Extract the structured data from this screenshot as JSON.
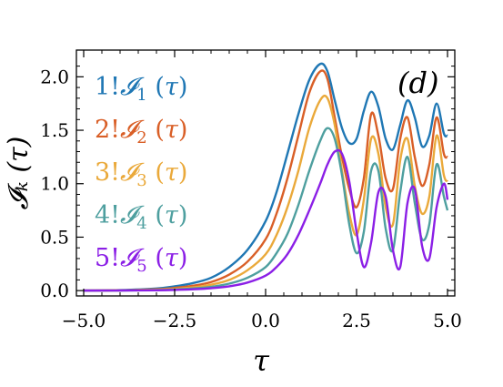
{
  "chart_data": {
    "type": "line",
    "xlabel": "τ",
    "ylabel": "𝓘ₖ (τ)",
    "xlim": [
      -5.2,
      5.2
    ],
    "ylim": [
      -0.05,
      2.25
    ],
    "xticks": [
      -5.0,
      -2.5,
      0.0,
      2.5,
      5.0
    ],
    "xtick_labels": [
      "−5.0",
      "−2.5",
      "0.0",
      "2.5",
      "5.0"
    ],
    "yticks": [
      0.0,
      0.5,
      1.0,
      1.5,
      2.0
    ],
    "ytick_labels": [
      "0.0",
      "0.5",
      "1.0",
      "1.5",
      "2.0"
    ],
    "panel_label": "(d)",
    "legend_position": "upper-left",
    "series": [
      {
        "name": "1!𝓘₁ (τ)",
        "prefix": "1!",
        "sub": "1",
        "color": "#1f77b4",
        "x": [
          -5.0,
          -4.0,
          -3.0,
          -2.5,
          -2.0,
          -1.5,
          -1.0,
          -0.5,
          0.0,
          0.3,
          0.6,
          0.9,
          1.2,
          1.5,
          1.7,
          1.9,
          2.1,
          2.3,
          2.5,
          2.7,
          2.9,
          3.1,
          3.3,
          3.5,
          3.7,
          3.9,
          4.1,
          4.3,
          4.5,
          4.7,
          4.9,
          5.0
        ],
        "y": [
          0.0,
          0.005,
          0.02,
          0.04,
          0.07,
          0.12,
          0.22,
          0.38,
          0.65,
          0.92,
          1.28,
          1.65,
          1.97,
          2.12,
          2.05,
          1.78,
          1.52,
          1.38,
          1.42,
          1.68,
          1.86,
          1.72,
          1.42,
          1.32,
          1.55,
          1.78,
          1.62,
          1.35,
          1.45,
          1.75,
          1.47,
          1.45
        ]
      },
      {
        "name": "2!𝓘₂ (τ)",
        "prefix": "2!",
        "sub": "2",
        "color": "#d95f27",
        "x": [
          -5.0,
          -4.0,
          -3.0,
          -2.5,
          -2.0,
          -1.5,
          -1.0,
          -0.5,
          0.0,
          0.3,
          0.6,
          0.9,
          1.2,
          1.5,
          1.7,
          1.9,
          2.1,
          2.3,
          2.5,
          2.7,
          2.9,
          3.1,
          3.3,
          3.5,
          3.7,
          3.9,
          4.1,
          4.3,
          4.5,
          4.7,
          4.9,
          5.0
        ],
        "y": [
          0.0,
          0.003,
          0.012,
          0.025,
          0.045,
          0.08,
          0.15,
          0.27,
          0.48,
          0.72,
          1.05,
          1.45,
          1.85,
          2.05,
          1.98,
          1.62,
          1.25,
          0.95,
          0.78,
          1.05,
          1.65,
          1.45,
          1.05,
          0.95,
          1.42,
          1.62,
          1.25,
          0.98,
          1.18,
          1.62,
          1.28,
          1.25
        ]
      },
      {
        "name": "3!𝓘₃ (τ)",
        "prefix": "3!",
        "sub": "3",
        "color": "#eaa93a",
        "x": [
          -5.0,
          -4.0,
          -3.0,
          -2.5,
          -2.0,
          -1.5,
          -1.0,
          -0.5,
          0.0,
          0.3,
          0.6,
          0.9,
          1.2,
          1.5,
          1.7,
          1.9,
          2.1,
          2.3,
          2.5,
          2.7,
          2.9,
          3.1,
          3.3,
          3.5,
          3.7,
          3.9,
          4.1,
          4.3,
          4.5,
          4.7,
          4.9,
          5.0
        ],
        "y": [
          0.0,
          0.002,
          0.008,
          0.016,
          0.03,
          0.055,
          0.1,
          0.19,
          0.34,
          0.52,
          0.78,
          1.12,
          1.52,
          1.78,
          1.8,
          1.55,
          1.12,
          0.72,
          0.52,
          0.85,
          1.42,
          1.28,
          0.78,
          0.62,
          1.22,
          1.42,
          0.98,
          0.72,
          0.88,
          1.45,
          1.08,
          1.02
        ]
      },
      {
        "name": "4!𝓘₄ (τ)",
        "prefix": "4!",
        "sub": "4",
        "color": "#4e9f9f",
        "x": [
          -5.0,
          -4.0,
          -3.0,
          -2.5,
          -2.0,
          -1.5,
          -1.0,
          -0.5,
          0.0,
          0.3,
          0.6,
          0.9,
          1.2,
          1.5,
          1.7,
          1.9,
          2.1,
          2.3,
          2.5,
          2.7,
          2.9,
          3.1,
          3.3,
          3.5,
          3.7,
          3.9,
          4.1,
          4.3,
          4.5,
          4.7,
          4.9,
          5.0
        ],
        "y": [
          0.0,
          0.001,
          0.005,
          0.01,
          0.02,
          0.035,
          0.065,
          0.12,
          0.22,
          0.35,
          0.53,
          0.8,
          1.12,
          1.4,
          1.52,
          1.42,
          1.08,
          0.62,
          0.35,
          0.55,
          1.12,
          1.12,
          0.58,
          0.38,
          0.92,
          1.25,
          0.82,
          0.48,
          0.62,
          1.18,
          0.88,
          0.75
        ]
      },
      {
        "name": "5!𝓘₅ (τ)",
        "prefix": "5!",
        "sub": "5",
        "color": "#8b1fe6",
        "x": [
          -5.0,
          -4.0,
          -3.0,
          -2.5,
          -2.0,
          -1.5,
          -1.0,
          -0.5,
          0.0,
          0.3,
          0.6,
          0.9,
          1.2,
          1.5,
          1.7,
          1.9,
          2.1,
          2.3,
          2.5,
          2.7,
          2.9,
          3.1,
          3.3,
          3.5,
          3.7,
          3.9,
          4.1,
          4.3,
          4.5,
          4.7,
          4.9,
          5.0
        ],
        "y": [
          0.0,
          0.001,
          0.003,
          0.006,
          0.012,
          0.022,
          0.04,
          0.075,
          0.14,
          0.22,
          0.34,
          0.52,
          0.75,
          1.0,
          1.18,
          1.3,
          1.28,
          1.02,
          0.55,
          0.22,
          0.45,
          0.92,
          0.88,
          0.38,
          0.22,
          0.82,
          0.95,
          0.42,
          0.3,
          0.78,
          1.0,
          0.85
        ]
      }
    ]
  }
}
